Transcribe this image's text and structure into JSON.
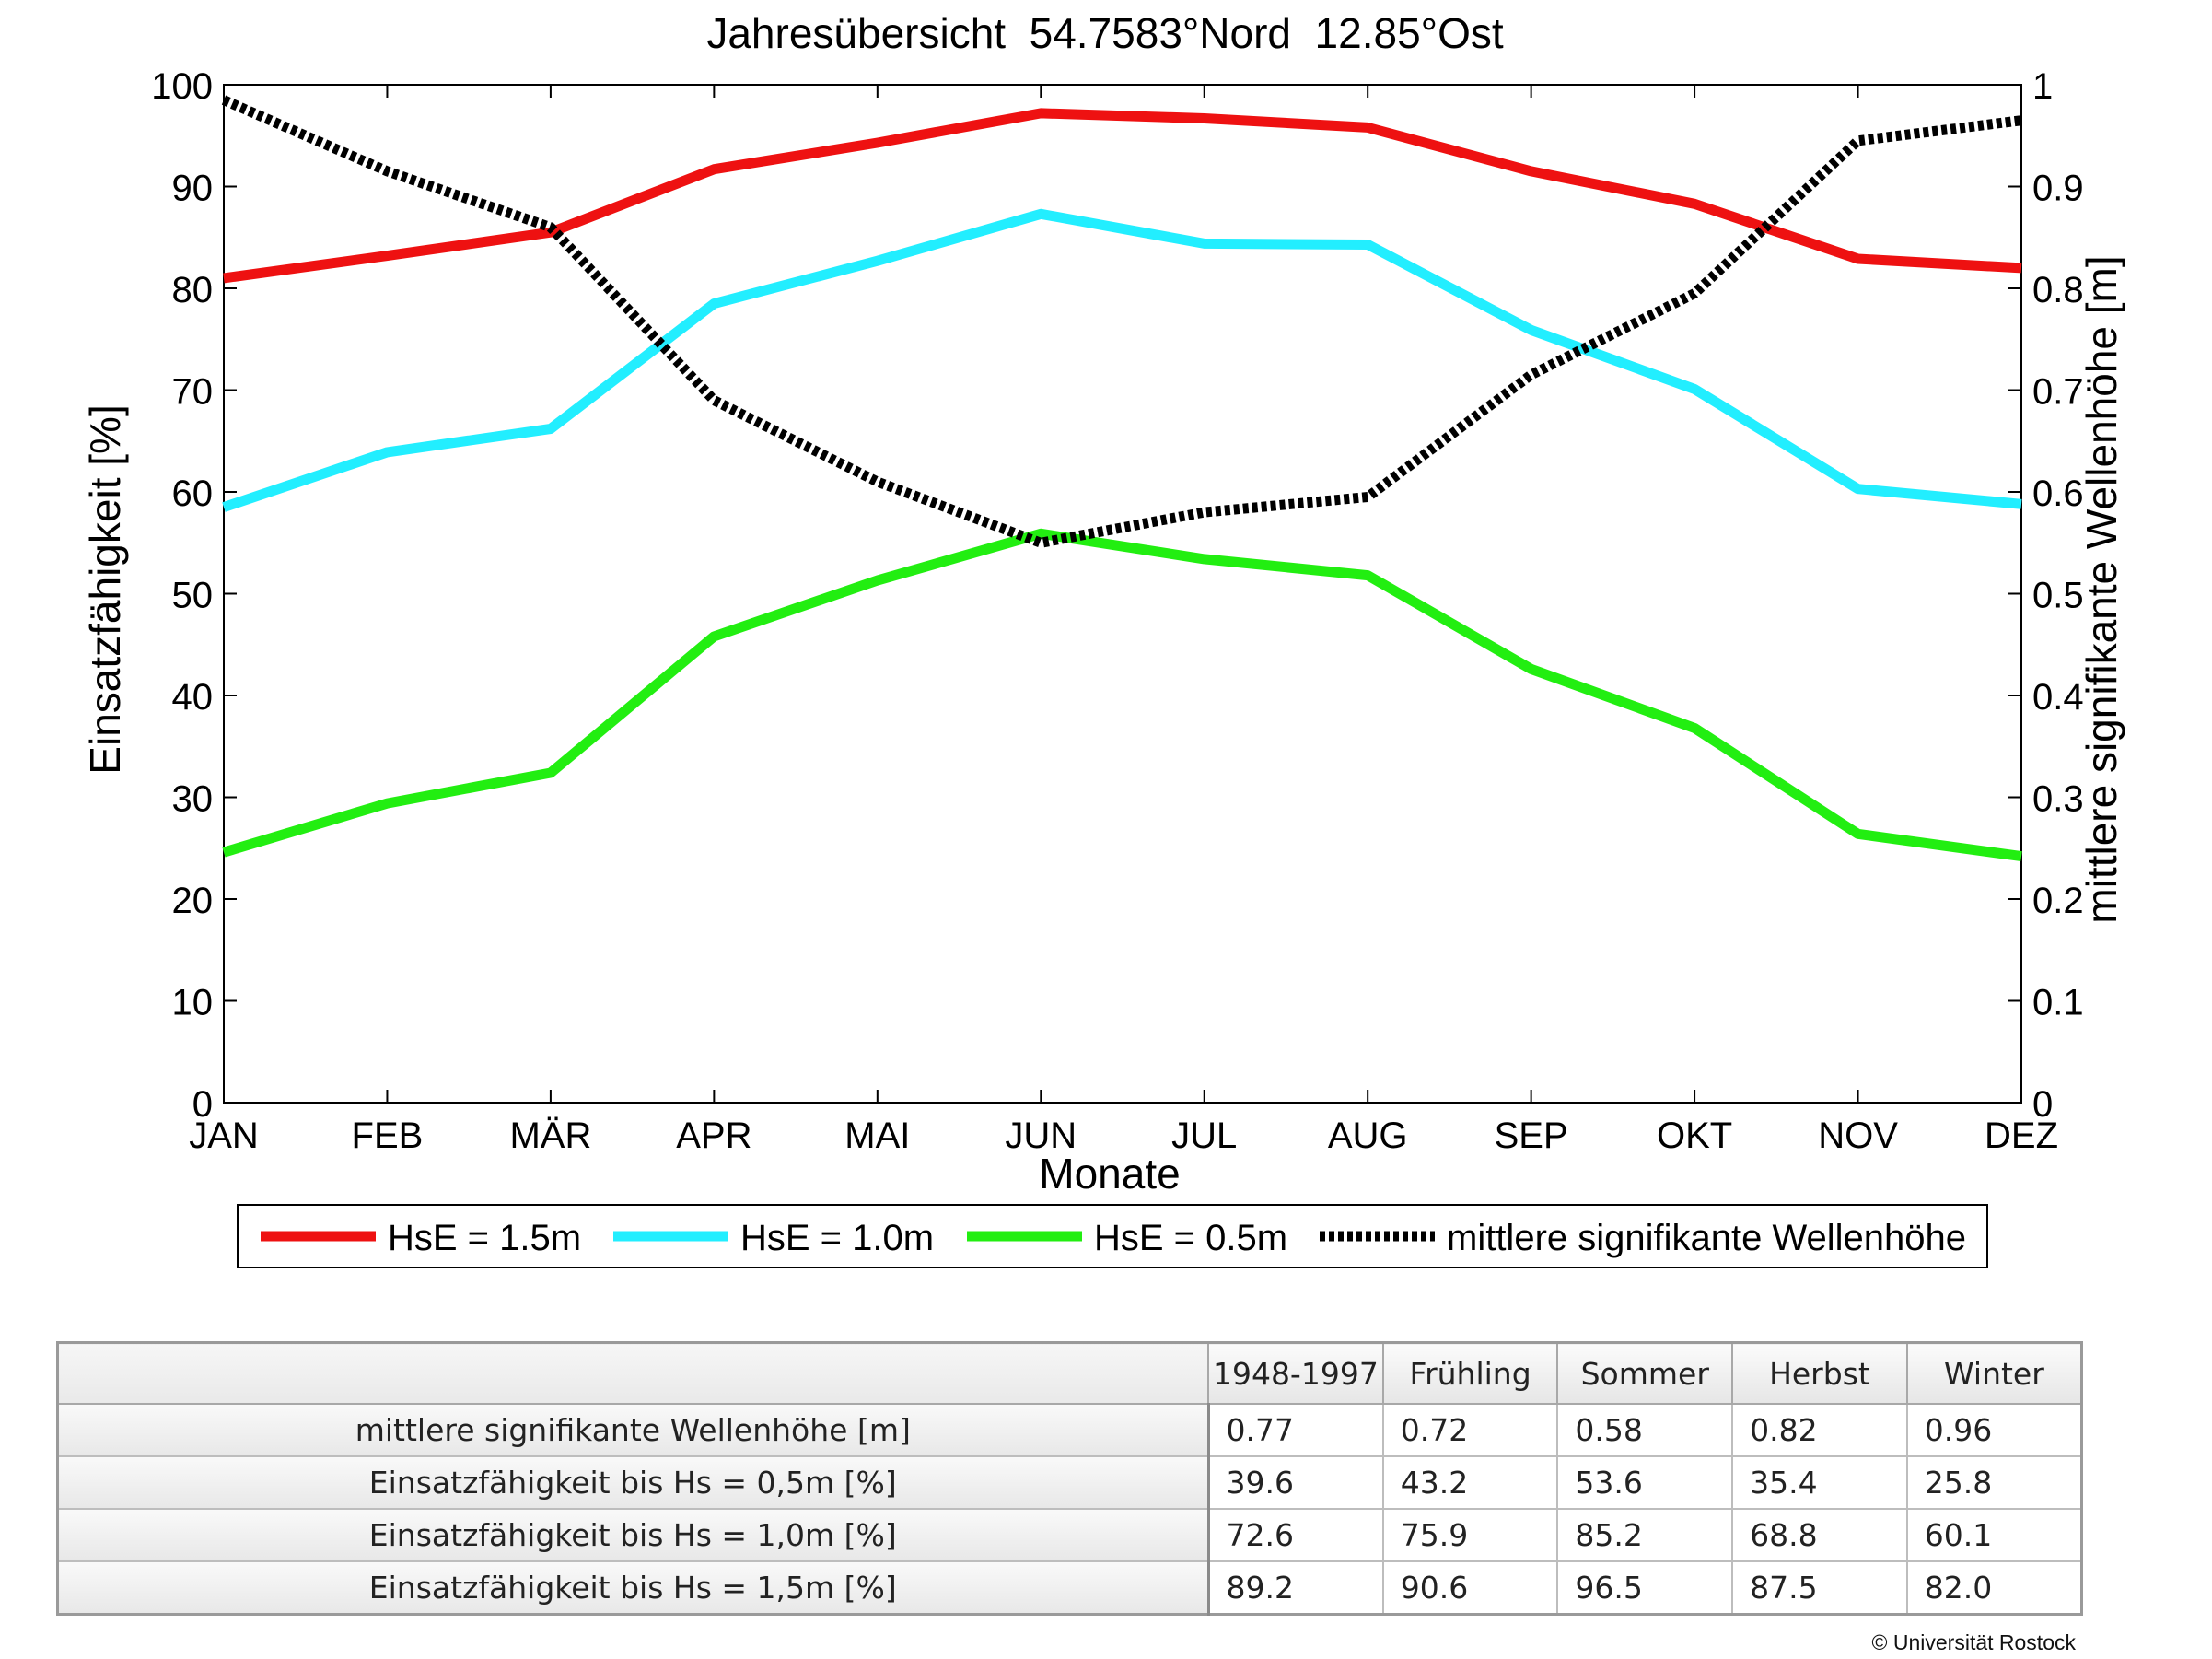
{
  "chart_data": {
    "type": "line",
    "title": "Jahresübersicht  54.7583°Nord  12.85°Ost",
    "xlabel": "Monate",
    "ylabel_left": "Einsatzfähigkeit [%]",
    "ylabel_right": "mittlere signifikante Wellenhöhe [m]",
    "categories": [
      "JAN",
      "FEB",
      "MÄR",
      "APR",
      "MAI",
      "JUN",
      "JUL",
      "AUG",
      "SEP",
      "OKT",
      "NOV",
      "DEZ"
    ],
    "ylim_left": [
      0,
      100
    ],
    "yticks_left": [
      "0",
      "10",
      "20",
      "30",
      "40",
      "50",
      "60",
      "70",
      "80",
      "90",
      "100"
    ],
    "ylim_right": [
      0,
      1
    ],
    "yticks_right": [
      "0",
      "0.1",
      "0.2",
      "0.3",
      "0.4",
      "0.5",
      "0.6",
      "0.7",
      "0.8",
      "0.9",
      "1"
    ],
    "grid": false,
    "legend_position": "bottom",
    "series": [
      {
        "name": "HsE = 1.5m",
        "axis": "left",
        "color": "#ee1111",
        "style": "solid",
        "values": [
          81,
          83.2,
          85.5,
          91.7,
          94.3,
          97.2,
          96.7,
          95.8,
          91.5,
          88.3,
          82.9,
          82.0
        ]
      },
      {
        "name": "HsE = 1.0m",
        "axis": "left",
        "color": "#22eeff",
        "style": "solid",
        "values": [
          58.5,
          63.9,
          66.2,
          78.5,
          82.7,
          87.3,
          84.4,
          84.3,
          75.9,
          70.1,
          60.3,
          58.8
        ]
      },
      {
        "name": "HsE = 0.5m",
        "axis": "left",
        "color": "#22ee11",
        "style": "solid",
        "values": [
          24.6,
          29.4,
          32.4,
          45.8,
          51.3,
          55.9,
          53.4,
          51.8,
          42.6,
          36.8,
          26.4,
          24.2
        ]
      },
      {
        "name": "mittlere signifikante Wellenhöhe",
        "axis": "right",
        "color": "#000000",
        "style": "dotted",
        "values": [
          0.985,
          0.915,
          0.86,
          0.69,
          0.61,
          0.55,
          0.58,
          0.595,
          0.715,
          0.795,
          0.945,
          0.965
        ]
      }
    ]
  },
  "table": {
    "columns": [
      "1948-1997",
      "Frühling",
      "Sommer",
      "Herbst",
      "Winter"
    ],
    "rows": [
      {
        "label": "mittlere signifikante Wellenhöhe [m]",
        "values": [
          "0.77",
          "0.72",
          "0.58",
          "0.82",
          "0.96"
        ]
      },
      {
        "label": "Einsatzfähigkeit bis Hs = 0,5m [%]",
        "values": [
          "39.6",
          "43.2",
          "53.6",
          "35.4",
          "25.8"
        ]
      },
      {
        "label": "Einsatzfähigkeit bis Hs = 1,0m [%]",
        "values": [
          "72.6",
          "75.9",
          "85.2",
          "68.8",
          "60.1"
        ]
      },
      {
        "label": "Einsatzfähigkeit bis Hs = 1,5m [%]",
        "values": [
          "89.2",
          "90.6",
          "96.5",
          "87.5",
          "82.0"
        ]
      }
    ]
  },
  "copyright": "© Universität Rostock"
}
